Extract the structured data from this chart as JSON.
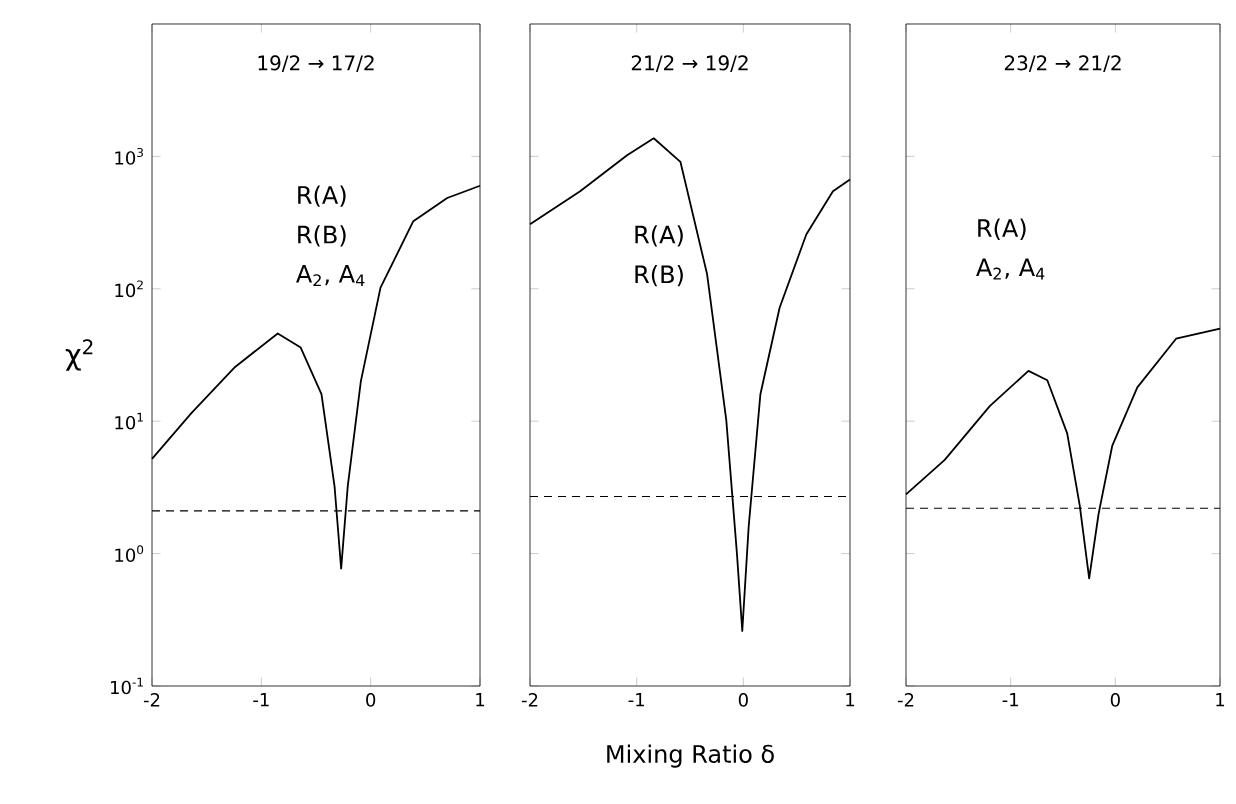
{
  "chart_data": [
    {
      "type": "line",
      "title": "19/2 → 17/2",
      "ylabel": "χ$^{2}$",
      "annotations": [
        "R(A)",
        "R(B)",
        "A$_{2}$, A$_{4}$"
      ],
      "series": [
        {
          "color": "#000000",
          "x": [
            -2,
            -1.64,
            -1.24,
            -0.85,
            -0.64,
            -0.45,
            -0.33,
            -0.27,
            -0.21,
            -0.09,
            0.09,
            0.39,
            0.7,
            1
          ],
          "values": [
            5.2,
            11.5,
            25.7,
            46,
            36,
            16,
            3.2,
            0.77,
            3.2,
            20,
            102,
            324,
            485,
            600
          ]
        }
      ],
      "log": "y",
      "xlim": [
        -2,
        1
      ],
      "ylim": [
        0.1,
        10000
      ],
      "xticks": [
        -2,
        -1,
        0,
        1
      ],
      "yticks": [
        {
          "value": 0.1,
          "label": "10$^{-1}$"
        },
        {
          "value": 1,
          "label": "10$^{0}$"
        },
        {
          "value": 10,
          "label": "10$^{1}$"
        },
        {
          "value": 100,
          "label": "10$^{2}$"
        },
        {
          "value": 1000,
          "label": "10$^{3}$"
        }
      ],
      "ref_lines": [
        {
          "axis": "y",
          "value": 2.1,
          "line_style": "dashed"
        }
      ],
      "grid": false,
      "marker": "none",
      "line_style": "solid"
    },
    {
      "type": "line",
      "title": "21/2 → 19/2",
      "xlabel": "Mixing Ratio δ",
      "annotations": [
        "R(A)",
        "R(B)"
      ],
      "series": [
        {
          "color": "#000000",
          "x": [
            -2,
            -1.53,
            -1.09,
            -0.84,
            -0.59,
            -0.34,
            -0.16,
            -0.06,
            -0.01,
            0.05,
            0.16,
            0.34,
            0.59,
            0.84,
            1
          ],
          "values": [
            307,
            545,
            1020,
            1370,
            910,
            129,
            10.2,
            1.0,
            0.26,
            1.6,
            16,
            72,
            257,
            545,
            670
          ]
        }
      ],
      "log": "y",
      "xlim": [
        -2,
        1
      ],
      "ylim": [
        0.1,
        10000
      ],
      "xticks": [
        -2,
        -1,
        0,
        1
      ],
      "tick_labels": "x",
      "ref_lines": [
        {
          "axis": "y",
          "value": 2.7,
          "line_style": "dashed"
        }
      ],
      "grid": false,
      "marker": "none",
      "line_style": "solid"
    },
    {
      "type": "line",
      "title": "23/2 → 21/2",
      "annotations": [
        "R(A)",
        "A$_{2}$, A$_{4}$"
      ],
      "series": [
        {
          "color": "#000000",
          "x": [
            -2,
            -1.63,
            -1.2,
            -0.83,
            -0.65,
            -0.46,
            -0.34,
            -0.25,
            -0.16,
            -0.03,
            0.21,
            0.58,
            1
          ],
          "values": [
            2.8,
            5.1,
            13,
            24,
            20.4,
            8.1,
            2.3,
            0.65,
            2.0,
            6.5,
            18,
            42,
            50
          ]
        }
      ],
      "log": "y",
      "xlim": [
        -2,
        1
      ],
      "ylim": [
        0.1,
        10000
      ],
      "xticks": [
        -2,
        -1,
        0,
        1
      ],
      "tick_labels": "x",
      "ref_lines": [
        {
          "axis": "y",
          "value": 2.2,
          "line_style": "dashed"
        }
      ],
      "grid": false,
      "marker": "none",
      "line_style": "solid"
    }
  ]
}
